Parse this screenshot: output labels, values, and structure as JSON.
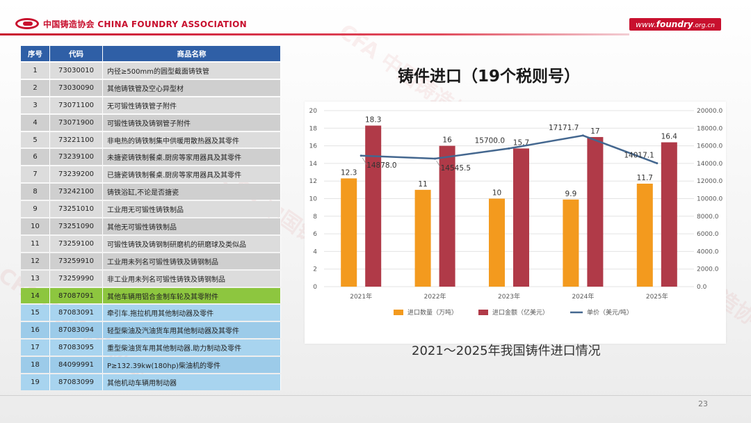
{
  "header": {
    "org_name": "中国铸造协会 CHINA FOUNDRY ASSOCIATION",
    "url_prefix": "www.",
    "url_main": "foundry",
    "url_suffix": ".org.cn"
  },
  "table": {
    "columns": [
      "序号",
      "代码",
      "商品名称"
    ],
    "rows": [
      {
        "idx": "1",
        "code": "73030010",
        "name": "内径≥500mm的圆型截面铸铁管",
        "hl": ""
      },
      {
        "idx": "2",
        "code": "73030090",
        "name": "其他铸铁管及空心异型材",
        "hl": ""
      },
      {
        "idx": "3",
        "code": "73071100",
        "name": "无可锻性铸铁管子附件",
        "hl": ""
      },
      {
        "idx": "4",
        "code": "73071900",
        "name": "可锻性铸铁及铸钢管子附件",
        "hl": ""
      },
      {
        "idx": "5",
        "code": "73221100",
        "name": "非电热的铸铁制集中供暖用散热器及其零件",
        "hl": ""
      },
      {
        "idx": "6",
        "code": "73239100",
        "name": "未搪瓷铸铁制餐桌.厨房等家用器具及其零件",
        "hl": ""
      },
      {
        "idx": "7",
        "code": "73239200",
        "name": "已搪瓷铸铁制餐桌.厨房等家用器具及其零件",
        "hl": ""
      },
      {
        "idx": "8",
        "code": "73242100",
        "name": "铸铁浴缸,不论是否搪瓷",
        "hl": ""
      },
      {
        "idx": "9",
        "code": "73251010",
        "name": "工业用无可锻性铸铁制品",
        "hl": ""
      },
      {
        "idx": "10",
        "code": "73251090",
        "name": "其他无可锻性铸铁制品",
        "hl": ""
      },
      {
        "idx": "11",
        "code": "73259100",
        "name": "可锻性铸铁及铸钢制研磨机的研磨球及类似品",
        "hl": ""
      },
      {
        "idx": "12",
        "code": "73259910",
        "name": "工业用未列名可锻性铸铁及铸钢制品",
        "hl": ""
      },
      {
        "idx": "13",
        "code": "73259990",
        "name": "非工业用未列名可锻性铸铁及铸钢制品",
        "hl": ""
      },
      {
        "idx": "14",
        "code": "87087091",
        "name": "其他车辆用铝合金制车轮及其零附件",
        "hl": "green"
      },
      {
        "idx": "15",
        "code": "87083091",
        "name": "牵引车.拖拉机用其他制动器及零件",
        "hl": "blue"
      },
      {
        "idx": "16",
        "code": "87083094",
        "name": "轻型柴油及汽油货车用其他制动器及其零件",
        "hl": "blue"
      },
      {
        "idx": "17",
        "code": "87083095",
        "name": "重型柴油货车用其他制动器.助力制动及零件",
        "hl": "blue"
      },
      {
        "idx": "18",
        "code": "84099991",
        "name": "P≥132.39kw(180hp)柴油机的零件",
        "hl": "blue"
      },
      {
        "idx": "19",
        "code": "87083099",
        "name": "其他机动车辆用制动器",
        "hl": "blue"
      }
    ]
  },
  "chart_title": "铸件进口（19个税则号）",
  "caption": "2021～2025年我国铸件进口情况",
  "page_number": "23",
  "colors": {
    "brand_red": "#c8102e",
    "table_header": "#2f5fa6",
    "bar_orange": "#f39a1e",
    "bar_red": "#b03a48",
    "line_blue": "#44678f"
  },
  "chart_data": {
    "type": "bar",
    "categories": [
      "2021年",
      "2022年",
      "2023年",
      "2024年",
      "2025年"
    ],
    "series": [
      {
        "name": "进口数量（万吨）",
        "type": "bar",
        "axis": "left",
        "values": [
          12.3,
          11,
          10,
          9.9,
          11.7
        ],
        "labels": [
          "12.3",
          "11",
          "10",
          "9.9",
          "11.7"
        ]
      },
      {
        "name": "进口金额（亿美元）",
        "type": "bar",
        "axis": "left",
        "values": [
          18.3,
          16,
          15.7,
          17,
          16.4
        ],
        "labels": [
          "18.3",
          "16",
          "15.7",
          "17",
          "16.4"
        ]
      },
      {
        "name": "单价（美元/吨）",
        "type": "line",
        "axis": "right",
        "values": [
          14878.0,
          14545.5,
          15700.0,
          17171.7,
          14017.1
        ],
        "labels": [
          "14878.0",
          "14545.5",
          "15700.0",
          "17171.7",
          "14017.1"
        ]
      }
    ],
    "y_left": {
      "min": 0,
      "max": 20,
      "ticks": [
        "0",
        "2",
        "4",
        "6",
        "8",
        "10",
        "12",
        "14",
        "16",
        "18",
        "20"
      ]
    },
    "y_right": {
      "min": 0,
      "max": 20000,
      "ticks": [
        "0.0",
        "2000.0",
        "4000.0",
        "6000.0",
        "8000.0",
        "10000.0",
        "12000.0",
        "14000.0",
        "16000.0",
        "18000.0",
        "20000.0"
      ]
    },
    "grid": true,
    "legend": "bottom"
  }
}
